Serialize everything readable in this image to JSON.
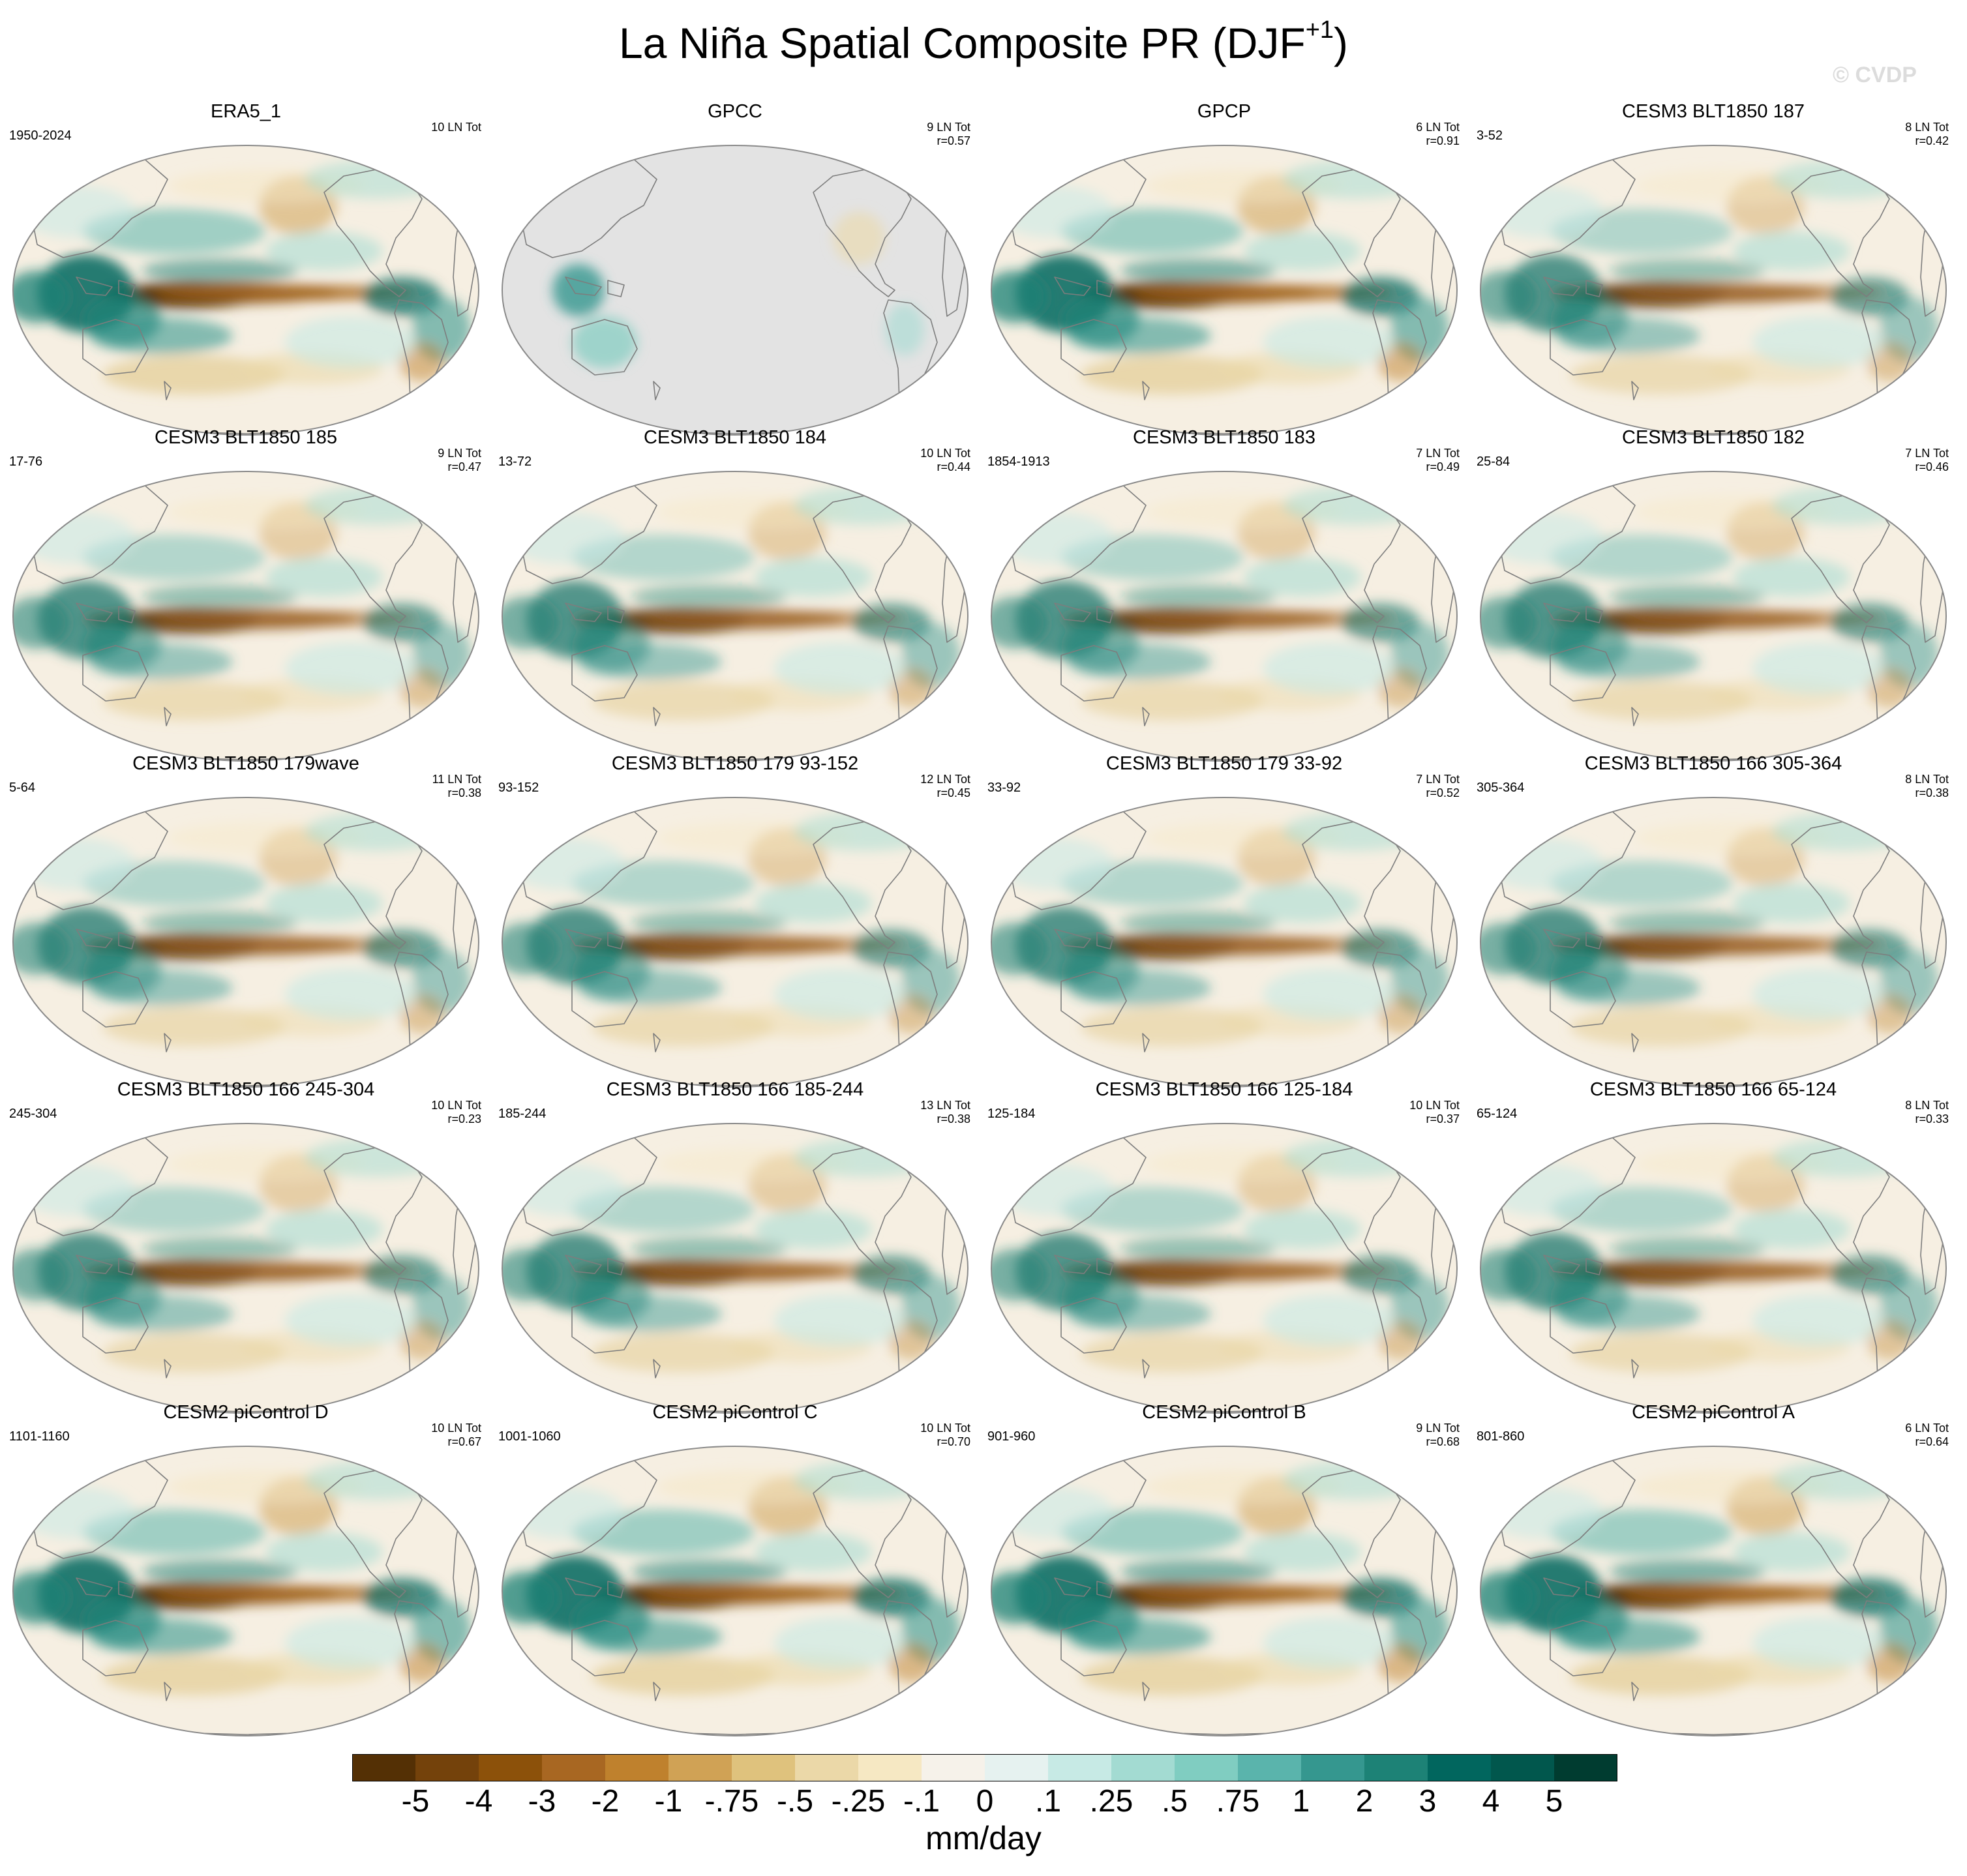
{
  "title": {
    "main": "La Niña Spatial Composite PR (DJF",
    "sup": "+1",
    "close": ")"
  },
  "watermark": "© CVDP",
  "colors": {
    "ocean_base": "#f6efe2",
    "land_missing": "#e3e3e3",
    "coast": "#7d7d7d",
    "border": "#8a8a8a",
    "dry_strong": "#6a3d0f",
    "wet_strong": "#0e6b5e"
  },
  "panels": [
    {
      "title": "ERA5_1",
      "period": "1950-2024",
      "count": "10 LN Tot",
      "r": "",
      "style": "era"
    },
    {
      "title": "GPCC",
      "period": "",
      "count": "9 LN Tot",
      "r": "r=0.57",
      "style": "land"
    },
    {
      "title": "GPCP",
      "period": "",
      "count": "6 LN Tot",
      "r": "r=0.91",
      "style": "obs"
    },
    {
      "title": "CESM3 BLT1850 187",
      "period": "3-52",
      "count": "8 LN Tot",
      "r": "r=0.42",
      "style": "model"
    },
    {
      "title": "CESM3 BLT1850 185",
      "period": "17-76",
      "count": "9 LN Tot",
      "r": "r=0.47",
      "style": "model"
    },
    {
      "title": "CESM3 BLT1850 184",
      "period": "13-72",
      "count": "10 LN Tot",
      "r": "r=0.44",
      "style": "model"
    },
    {
      "title": "CESM3 BLT1850 183",
      "period": "1854-1913",
      "count": "7 LN Tot",
      "r": "r=0.49",
      "style": "model"
    },
    {
      "title": "CESM3 BLT1850 182",
      "period": "25-84",
      "count": "7 LN Tot",
      "r": "r=0.46",
      "style": "model"
    },
    {
      "title": "CESM3 BLT1850 179wave",
      "period": "5-64",
      "count": "11 LN Tot",
      "r": "r=0.38",
      "style": "model"
    },
    {
      "title": "CESM3 BLT1850 179 93-152",
      "period": "93-152",
      "count": "12 LN Tot",
      "r": "r=0.45",
      "style": "model"
    },
    {
      "title": "CESM3 BLT1850 179 33-92",
      "period": "33-92",
      "count": "7 LN Tot",
      "r": "r=0.52",
      "style": "model"
    },
    {
      "title": "CESM3 BLT1850 166 305-364",
      "period": "305-364",
      "count": "8 LN Tot",
      "r": "r=0.38",
      "style": "model"
    },
    {
      "title": "CESM3 BLT1850 166 245-304",
      "period": "245-304",
      "count": "10 LN Tot",
      "r": "r=0.23",
      "style": "model"
    },
    {
      "title": "CESM3 BLT1850 166 185-244",
      "period": "185-244",
      "count": "13 LN Tot",
      "r": "r=0.38",
      "style": "model"
    },
    {
      "title": "CESM3 BLT1850 166 125-184",
      "period": "125-184",
      "count": "10 LN Tot",
      "r": "r=0.37",
      "style": "model"
    },
    {
      "title": "CESM3 BLT1850 166 65-124",
      "period": "65-124",
      "count": "8 LN Tot",
      "r": "r=0.33",
      "style": "model"
    },
    {
      "title": "CESM2 piControl D",
      "period": "1101-1160",
      "count": "10 LN Tot",
      "r": "r=0.67",
      "style": "strong"
    },
    {
      "title": "CESM2 piControl C",
      "period": "1001-1060",
      "count": "10 LN Tot",
      "r": "r=0.70",
      "style": "strong"
    },
    {
      "title": "CESM2 piControl B",
      "period": "901-960",
      "count": "9 LN Tot",
      "r": "r=0.68",
      "style": "strong"
    },
    {
      "title": "CESM2 piControl A",
      "period": "801-860",
      "count": "6 LN Tot",
      "r": "r=0.64",
      "style": "strong"
    }
  ],
  "colorbar": {
    "colors": [
      "#543005",
      "#74420b",
      "#8c510a",
      "#a86722",
      "#bf812d",
      "#d0a255",
      "#dfc27d",
      "#ebd8a8",
      "#f6e8c3",
      "#f6f2ea",
      "#e6f2f0",
      "#c7eae5",
      "#a3dbd2",
      "#80cdc1",
      "#5ab4ac",
      "#35978f",
      "#1d8276",
      "#01665e",
      "#01574d",
      "#003c30"
    ],
    "labels": [
      "-5",
      "-4",
      "-3",
      "-2",
      "-1",
      "-.75",
      "-.5",
      "-.25",
      "-.1",
      "0",
      ".1",
      ".25",
      ".5",
      ".75",
      "1",
      "2",
      "3",
      "4",
      "5"
    ],
    "units": "mm/day"
  }
}
